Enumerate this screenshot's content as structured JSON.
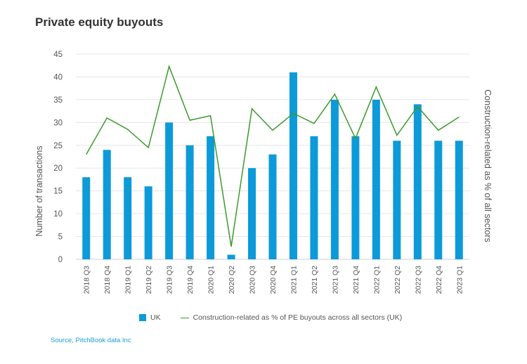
{
  "title": "Private equity buyouts",
  "source": "Source, PitchBook data Inc",
  "chart_data": {
    "type": "bar",
    "title": "Private equity buyouts",
    "ylabel": "Number of transactions",
    "ylabel_right": "Construction-related as % of all sectors",
    "ylim": [
      0,
      45
    ],
    "yticks": [
      0,
      5,
      10,
      15,
      20,
      25,
      30,
      35,
      40,
      45
    ],
    "grid": true,
    "legend_position": "bottom",
    "categories": [
      "2018 Q3",
      "2018 Q4",
      "2019 Q1",
      "2019 Q2",
      "2019 Q3",
      "2019 Q4",
      "2020 Q1",
      "2020 Q2",
      "2020 Q3",
      "2020 Q4",
      "2021 Q1",
      "2021 Q2",
      "2021 Q3",
      "2021 Q4",
      "2022 Q1",
      "2022 Q2",
      "2022 Q3",
      "2022 Q4",
      "2023 Q1"
    ],
    "series": [
      {
        "name": "UK",
        "type": "bar",
        "color": "#0d9ad8",
        "values": [
          18,
          24,
          18,
          16,
          30,
          25,
          27,
          1,
          20,
          23,
          41,
          27,
          35,
          27,
          35,
          26,
          34,
          26,
          26
        ]
      },
      {
        "name": "Construction-related as % of PE buyouts across all sectors (UK)",
        "type": "line",
        "color": "#3a9a2c",
        "values": [
          23,
          31,
          28.5,
          24.5,
          42.3,
          30.5,
          31.5,
          2.8,
          33,
          28.3,
          32,
          29.8,
          36.2,
          26.5,
          37.8,
          27.2,
          33.5,
          28.3,
          31.2
        ]
      }
    ]
  }
}
